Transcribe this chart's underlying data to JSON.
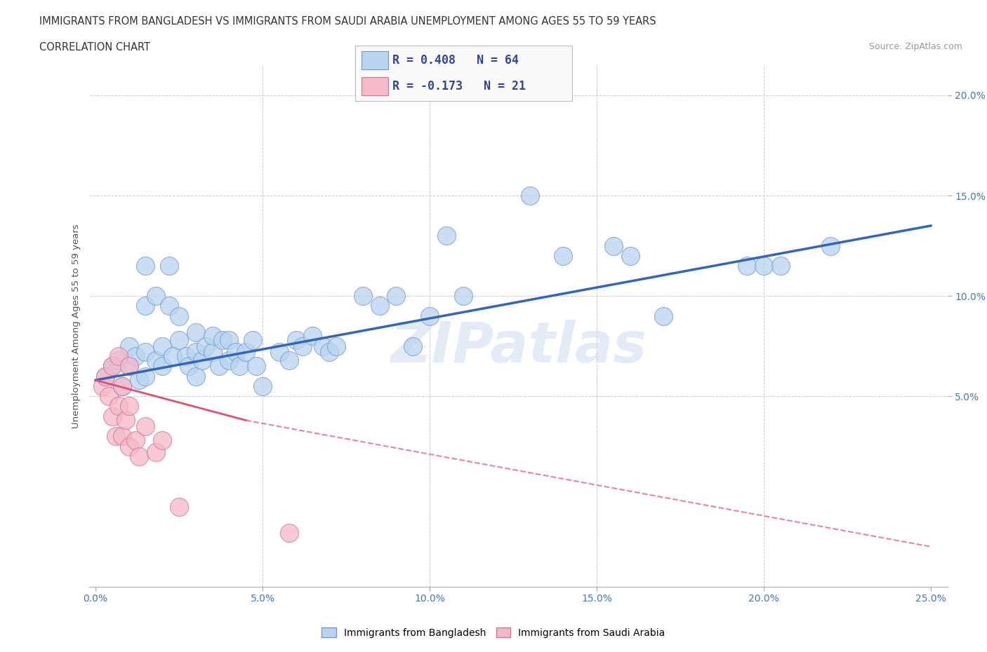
{
  "title_line1": "IMMIGRANTS FROM BANGLADESH VS IMMIGRANTS FROM SAUDI ARABIA UNEMPLOYMENT AMONG AGES 55 TO 59 YEARS",
  "title_line2": "CORRELATION CHART",
  "source_text": "Source: ZipAtlas.com",
  "ylabel": "Unemployment Among Ages 55 to 59 years",
  "xlim": [
    -0.002,
    0.255
  ],
  "ylim": [
    -0.045,
    0.215
  ],
  "xtick_labels": [
    "0.0%",
    "5.0%",
    "10.0%",
    "15.0%",
    "20.0%",
    "25.0%"
  ],
  "xtick_vals": [
    0.0,
    0.05,
    0.1,
    0.15,
    0.2,
    0.25
  ],
  "ytick_labels": [
    "5.0%",
    "10.0%",
    "15.0%",
    "20.0%"
  ],
  "ytick_vals": [
    0.05,
    0.1,
    0.15,
    0.2
  ],
  "bg_color": "#ffffff",
  "grid_color": "#cccccc",
  "watermark_text": "ZIPatlas",
  "legend_r1": "R = 0.408",
  "legend_n1": "N = 64",
  "legend_r2": "R = -0.173",
  "legend_n2": "N = 21",
  "color_bangladesh": "#b8d4f0",
  "color_saudi": "#f5b8c8",
  "line_color_bangladesh": "#3366bb",
  "line_color_saudi": "#e05070",
  "scatter_bangladesh": [
    [
      0.003,
      0.06
    ],
    [
      0.005,
      0.065
    ],
    [
      0.007,
      0.068
    ],
    [
      0.008,
      0.055
    ],
    [
      0.01,
      0.075
    ],
    [
      0.01,
      0.065
    ],
    [
      0.012,
      0.07
    ],
    [
      0.013,
      0.058
    ],
    [
      0.015,
      0.072
    ],
    [
      0.015,
      0.06
    ],
    [
      0.015,
      0.095
    ],
    [
      0.015,
      0.115
    ],
    [
      0.018,
      0.068
    ],
    [
      0.018,
      0.1
    ],
    [
      0.02,
      0.065
    ],
    [
      0.02,
      0.075
    ],
    [
      0.022,
      0.095
    ],
    [
      0.022,
      0.115
    ],
    [
      0.023,
      0.07
    ],
    [
      0.025,
      0.078
    ],
    [
      0.025,
      0.09
    ],
    [
      0.027,
      0.07
    ],
    [
      0.028,
      0.065
    ],
    [
      0.03,
      0.06
    ],
    [
      0.03,
      0.072
    ],
    [
      0.03,
      0.082
    ],
    [
      0.032,
      0.068
    ],
    [
      0.033,
      0.075
    ],
    [
      0.035,
      0.072
    ],
    [
      0.035,
      0.08
    ],
    [
      0.037,
      0.065
    ],
    [
      0.038,
      0.078
    ],
    [
      0.04,
      0.068
    ],
    [
      0.04,
      0.078
    ],
    [
      0.042,
      0.072
    ],
    [
      0.043,
      0.065
    ],
    [
      0.045,
      0.072
    ],
    [
      0.047,
      0.078
    ],
    [
      0.048,
      0.065
    ],
    [
      0.05,
      0.055
    ],
    [
      0.055,
      0.072
    ],
    [
      0.058,
      0.068
    ],
    [
      0.06,
      0.078
    ],
    [
      0.062,
      0.075
    ],
    [
      0.065,
      0.08
    ],
    [
      0.068,
      0.075
    ],
    [
      0.07,
      0.072
    ],
    [
      0.072,
      0.075
    ],
    [
      0.08,
      0.1
    ],
    [
      0.085,
      0.095
    ],
    [
      0.09,
      0.1
    ],
    [
      0.095,
      0.075
    ],
    [
      0.1,
      0.09
    ],
    [
      0.105,
      0.13
    ],
    [
      0.11,
      0.1
    ],
    [
      0.13,
      0.15
    ],
    [
      0.14,
      0.12
    ],
    [
      0.155,
      0.125
    ],
    [
      0.16,
      0.12
    ],
    [
      0.17,
      0.09
    ],
    [
      0.195,
      0.115
    ],
    [
      0.2,
      0.115
    ],
    [
      0.205,
      0.115
    ],
    [
      0.22,
      0.125
    ]
  ],
  "scatter_saudi": [
    [
      0.002,
      0.055
    ],
    [
      0.003,
      0.06
    ],
    [
      0.004,
      0.05
    ],
    [
      0.005,
      0.04
    ],
    [
      0.005,
      0.065
    ],
    [
      0.006,
      0.03
    ],
    [
      0.007,
      0.045
    ],
    [
      0.007,
      0.07
    ],
    [
      0.008,
      0.055
    ],
    [
      0.008,
      0.03
    ],
    [
      0.009,
      0.038
    ],
    [
      0.01,
      0.065
    ],
    [
      0.01,
      0.045
    ],
    [
      0.01,
      0.025
    ],
    [
      0.012,
      0.028
    ],
    [
      0.013,
      0.02
    ],
    [
      0.015,
      0.035
    ],
    [
      0.018,
      0.022
    ],
    [
      0.02,
      0.028
    ],
    [
      0.025,
      -0.005
    ],
    [
      0.058,
      -0.018
    ]
  ],
  "trendline_bangladesh": [
    [
      0.0,
      0.058
    ],
    [
      0.25,
      0.135
    ]
  ],
  "trendline_saudi_solid": [
    [
      0.0,
      0.058
    ],
    [
      0.045,
      0.038
    ]
  ],
  "trendline_saudi_dash": [
    [
      0.045,
      0.038
    ],
    [
      0.25,
      -0.025
    ]
  ]
}
